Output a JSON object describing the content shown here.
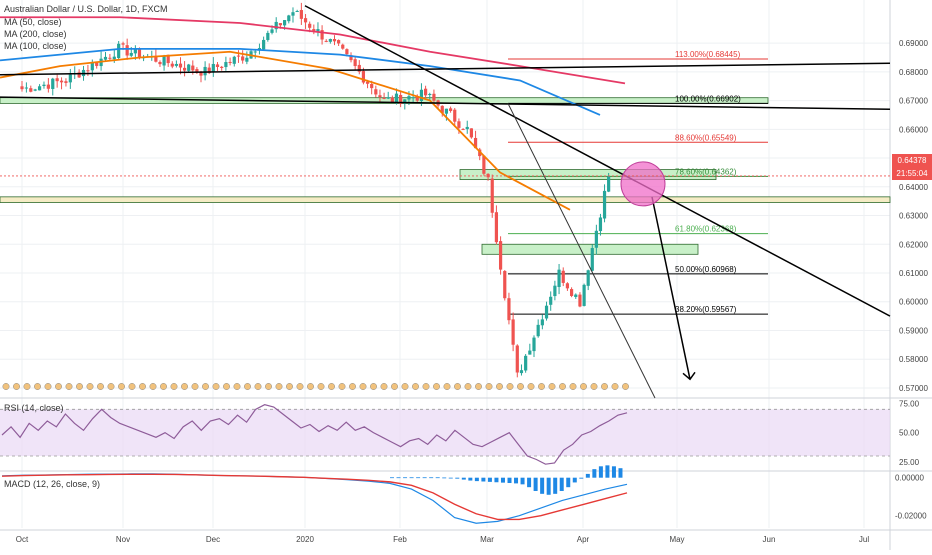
{
  "header": {
    "symbol_title": "Australian Dollar / U.S. Dollar, 1D, FXCM",
    "ma50": "MA (50, close)",
    "ma200": "MA (200, close)",
    "ma100": "MA (100, close)",
    "rsi_label": "RSI (14, close)",
    "macd_label": "MACD (12, 26, close, 9)"
  },
  "price_badges": {
    "last_price": "0.64378",
    "countdown": "21:55:04",
    "last_color": "#ef5350",
    "countdown_color": "#ef5350"
  },
  "colors": {
    "up": "#26a69a",
    "down": "#ef5350",
    "ma50": "#f57c00",
    "ma100": "#1e88e5",
    "ma200": "#e53965",
    "rsi": "#8e5c99",
    "rsi_band": "#e9d8f5",
    "macd_line": "#1e88e5",
    "signal_line": "#e53935",
    "zone_green": "#c8f0c8",
    "zone_tan": "#f5ecc5",
    "circle": "#f06ec8"
  },
  "chart_data": [
    {
      "type": "candlestick",
      "title": "Australian Dollar / U.S. Dollar, 1D, FXCM",
      "x_tick_labels": [
        "Oct",
        "Nov",
        "Dec",
        "2020",
        "Feb",
        "Mar",
        "Apr",
        "May",
        "Jun",
        "Jul"
      ],
      "y_tick_labels": [
        "0.69000",
        "0.68000",
        "0.67000",
        "0.66000",
        "0.65000",
        "0.64000",
        "0.63000",
        "0.62000",
        "0.61000",
        "0.60000",
        "0.59000",
        "0.58000",
        "0.57000"
      ],
      "ylim": [
        0.5665,
        0.705
      ],
      "price_path": [
        [
          "Oct",
          0.674
        ],
        [
          "Oct 15",
          0.677
        ],
        [
          "Nov",
          0.688
        ],
        [
          "Nov 15",
          0.684
        ],
        [
          "Dec",
          0.68
        ],
        [
          "Dec 15",
          0.686
        ],
        [
          "2020",
          0.701
        ],
        [
          "Jan 15",
          0.688
        ],
        [
          "Feb",
          0.67
        ],
        [
          "Feb 15",
          0.672
        ],
        [
          "Mar",
          0.66
        ],
        [
          "Mar 10",
          0.642
        ],
        [
          "Mar 19",
          0.574
        ],
        [
          "Apr",
          0.61
        ],
        [
          "Apr 8",
          0.6
        ],
        [
          "Apr 15",
          0.6438
        ]
      ],
      "moving_averages": [
        {
          "name": "MA (50, close)",
          "values": [
            0.678,
            0.682,
            0.685,
            0.687,
            0.681,
            0.67,
            0.645,
            0.632
          ]
        },
        {
          "name": "MA (100, close)",
          "values": [
            0.684,
            0.688,
            0.688,
            0.686,
            0.682,
            0.677,
            0.665
          ]
        },
        {
          "name": "MA (200, close)",
          "values": [
            0.699,
            0.699,
            0.697,
            0.693,
            0.687,
            0.682,
            0.676
          ]
        }
      ],
      "fibonacci_levels": [
        {
          "label": "113.00%(0.68445)",
          "value": 0.68445,
          "color": "#e53935"
        },
        {
          "label": "100.00%(0.66902)",
          "value": 0.66902,
          "color": "#000000"
        },
        {
          "label": "88.60%(0.65549)",
          "value": 0.65549,
          "color": "#e53935"
        },
        {
          "label": "78.60%(0.64362)",
          "value": 0.64362,
          "color": "#388e3c"
        },
        {
          "label": "61.80%(0.62368)",
          "value": 0.62368,
          "color": "#4caf50"
        },
        {
          "label": "50.00%(0.60968)",
          "value": 0.60968,
          "color": "#000000"
        },
        {
          "label": "38.20%(0.59567)",
          "value": 0.59567,
          "color": "#000000"
        }
      ],
      "last_price": 0.64378
    },
    {
      "type": "line",
      "title": "RSI (14, close)",
      "y_tick_labels": [
        "75.00",
        "50.00",
        "25.00"
      ],
      "ylim": [
        18,
        78
      ],
      "band": [
        30,
        70
      ],
      "values": [
        48,
        55,
        46,
        58,
        52,
        60,
        55,
        66,
        58,
        52,
        62,
        70,
        63,
        58,
        55,
        52,
        49,
        46,
        50,
        45,
        55,
        60,
        52,
        60,
        62,
        57,
        65,
        59,
        70,
        74,
        72,
        66,
        60,
        54,
        57,
        51,
        56,
        52,
        59,
        52,
        55,
        50,
        46,
        42,
        38,
        43,
        45,
        40,
        48,
        43,
        52,
        46,
        40,
        38,
        42,
        46,
        50,
        40,
        30,
        27,
        23,
        24,
        35,
        40,
        48,
        51,
        56,
        60,
        65,
        67
      ]
    },
    {
      "type": "bar",
      "title": "MACD (12, 26, close, 9)",
      "y_tick_labels": [
        "0.00000",
        "-0.02000"
      ],
      "ylim": [
        -0.0265,
        0.003
      ],
      "macd_values": [
        0.001,
        0.0013,
        0.0014,
        0.0016,
        0.0018,
        0.0019,
        0.002,
        0.002,
        0.0018,
        0.0015,
        0.0012,
        0.001,
        0.0008,
        0.0005,
        0.0002,
        -0.0004,
        -0.001,
        -0.0018,
        -0.003,
        -0.006,
        -0.012,
        -0.021,
        -0.024,
        -0.023,
        -0.02,
        -0.016,
        -0.012,
        -0.009,
        -0.006,
        -0.0035
      ],
      "signal_values": [
        0.0008,
        0.0011,
        0.0013,
        0.0015,
        0.0016,
        0.0017,
        0.0018,
        0.0018,
        0.0017,
        0.0015,
        0.0012,
        0.001,
        0.0008,
        0.0005,
        0.0002,
        -0.0003,
        -0.0008,
        -0.0014,
        -0.0022,
        -0.004,
        -0.008,
        -0.014,
        -0.019,
        -0.022,
        -0.022,
        -0.02,
        -0.017,
        -0.014,
        -0.011,
        -0.008
      ],
      "histogram_values": [
        0.0002,
        0.0002,
        0.0002,
        0.0002,
        0.0002,
        0.0002,
        0.0002,
        0.0002,
        0.0001,
        0,
        -0.0005,
        -0.001,
        -0.0015,
        -0.0018,
        -0.002,
        -0.0022,
        -0.0024,
        -0.0026,
        -0.0028,
        -0.003,
        -0.0035,
        -0.005,
        -0.007,
        -0.0085,
        -0.009,
        -0.0085,
        -0.007,
        -0.005,
        -0.0025,
        -0.0005,
        0.002,
        0.0045,
        0.006,
        0.0065,
        0.006,
        0.005
      ]
    }
  ]
}
